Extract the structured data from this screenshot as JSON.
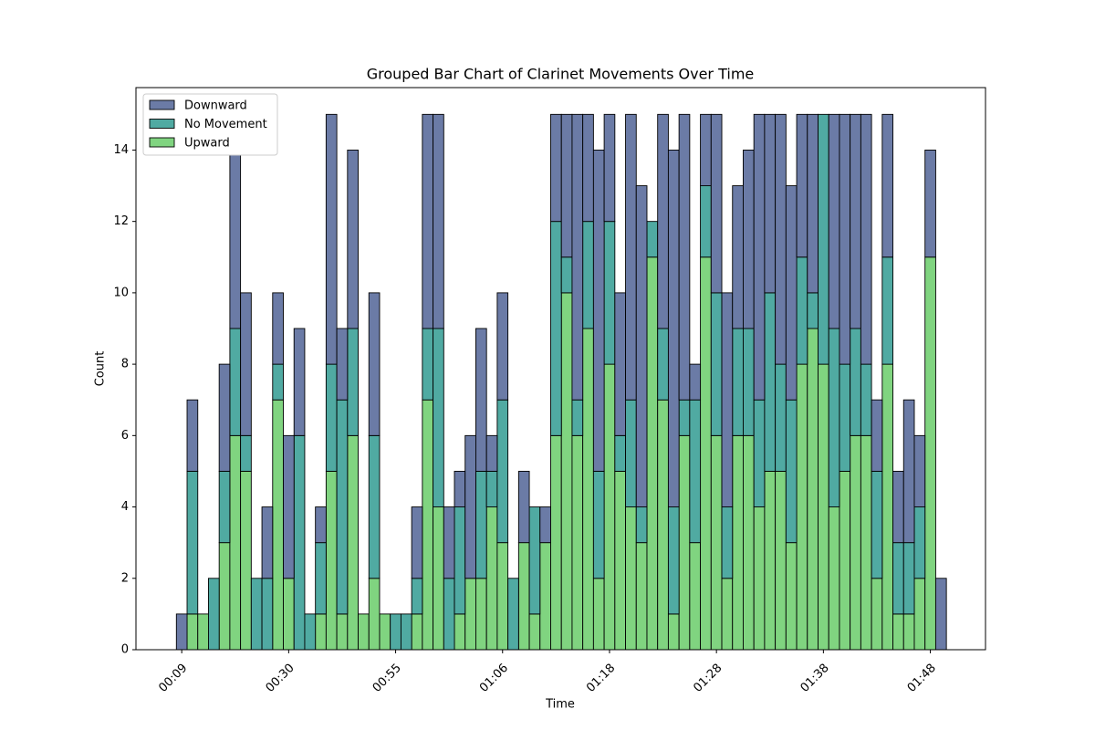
{
  "chart_data": {
    "type": "stacked_bar",
    "title": "Grouped Bar Chart of Clarinet Movements Over Time",
    "x_label": "Time",
    "y_label": "Count",
    "categories": [
      "00:09",
      null,
      null,
      null,
      null,
      null,
      null,
      null,
      null,
      null,
      "00:30",
      null,
      null,
      null,
      null,
      null,
      null,
      null,
      null,
      null,
      "00:55",
      null,
      null,
      null,
      null,
      null,
      null,
      null,
      null,
      null,
      "01:06",
      null,
      null,
      null,
      null,
      null,
      null,
      null,
      null,
      null,
      "01:18",
      null,
      null,
      null,
      null,
      null,
      null,
      null,
      null,
      null,
      "01:28",
      null,
      null,
      null,
      null,
      null,
      null,
      null,
      null,
      null,
      "01:38",
      null,
      null,
      null,
      null,
      null,
      null,
      null,
      null,
      null,
      "01:48",
      null
    ],
    "series": [
      {
        "name": "Downward",
        "color": "#6b7ba6",
        "values": [
          1,
          2,
          0,
          0,
          3,
          6,
          4,
          0,
          2,
          2,
          4,
          3,
          0,
          1,
          7,
          2,
          5,
          0,
          4,
          0,
          0,
          0,
          2,
          6,
          6,
          2,
          1,
          4,
          4,
          1,
          3,
          0,
          2,
          0,
          1,
          3,
          4,
          8,
          3,
          9,
          3,
          4,
          8,
          9,
          0,
          6,
          10,
          8,
          1,
          2,
          5,
          6,
          4,
          5,
          8,
          5,
          7,
          6,
          4,
          5,
          0,
          6,
          7,
          6,
          7,
          2,
          4,
          2,
          4,
          2,
          3,
          2
        ]
      },
      {
        "name": "No Movement",
        "color": "#50aaa2",
        "values": [
          0,
          4,
          0,
          2,
          2,
          3,
          1,
          2,
          2,
          1,
          0,
          6,
          1,
          2,
          3,
          6,
          3,
          0,
          4,
          0,
          1,
          1,
          1,
          2,
          5,
          2,
          3,
          0,
          3,
          1,
          4,
          2,
          0,
          3,
          0,
          6,
          1,
          1,
          3,
          3,
          4,
          1,
          3,
          1,
          1,
          2,
          3,
          1,
          4,
          2,
          4,
          2,
          3,
          3,
          3,
          5,
          3,
          4,
          3,
          1,
          7,
          5,
          3,
          3,
          2,
          3,
          3,
          2,
          2,
          2,
          0,
          0
        ]
      },
      {
        "name": "Upward",
        "color": "#80d480",
        "values": [
          0,
          1,
          1,
          0,
          3,
          6,
          5,
          0,
          0,
          7,
          2,
          0,
          0,
          1,
          5,
          1,
          6,
          1,
          2,
          1,
          0,
          0,
          1,
          7,
          4,
          0,
          1,
          2,
          2,
          4,
          3,
          0,
          3,
          1,
          3,
          6,
          10,
          6,
          9,
          2,
          8,
          5,
          4,
          3,
          11,
          7,
          1,
          6,
          3,
          11,
          6,
          2,
          6,
          6,
          4,
          5,
          5,
          3,
          8,
          9,
          8,
          4,
          5,
          6,
          6,
          2,
          8,
          1,
          1,
          2,
          11,
          0
        ]
      }
    ],
    "ylim": [
      0,
      15.75
    ],
    "yticks": [
      0,
      2,
      4,
      6,
      8,
      10,
      12,
      14
    ],
    "legend": "upper left"
  }
}
